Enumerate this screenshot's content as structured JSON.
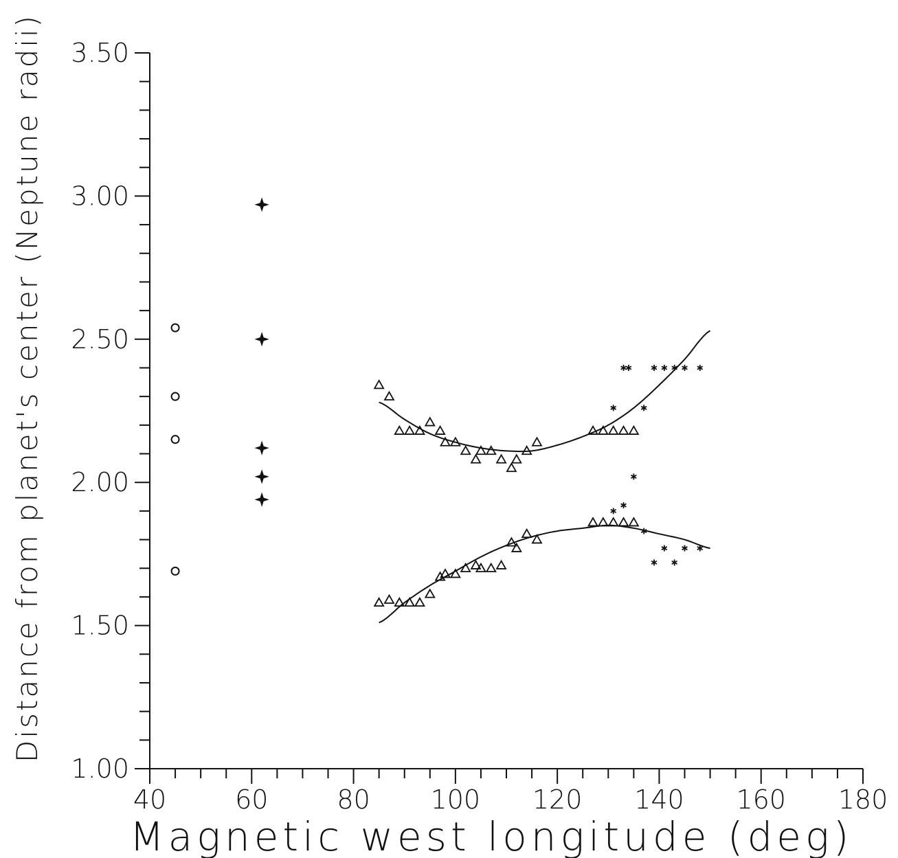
{
  "chart_data": {
    "type": "scatter",
    "title": "",
    "xlabel": "Magnetic west longitude (deg)",
    "ylabel": "Distance from planet's center (Neptune radii)",
    "xlim": [
      40,
      180
    ],
    "ylim": [
      1.0,
      3.5
    ],
    "x_ticks": [
      "40",
      "60",
      "80",
      "100",
      "120",
      "140",
      "160",
      "180"
    ],
    "y_ticks": [
      "1.00",
      "1.50",
      "2.00",
      "2.50",
      "3.00",
      "3.50"
    ],
    "grid": false,
    "series": [
      {
        "marker": "circle",
        "points": [
          [
            45,
            2.54
          ],
          [
            45,
            2.3
          ],
          [
            45,
            2.15
          ],
          [
            45,
            1.69
          ]
        ]
      },
      {
        "marker": "star",
        "points": [
          [
            62,
            2.97
          ],
          [
            62,
            2.5
          ],
          [
            62,
            2.12
          ],
          [
            62,
            2.02
          ],
          [
            62,
            1.94
          ]
        ]
      },
      {
        "marker": "triangle",
        "points": [
          [
            85,
            2.34
          ],
          [
            87,
            2.3
          ],
          [
            89,
            2.18
          ],
          [
            91,
            2.18
          ],
          [
            93,
            2.18
          ],
          [
            95,
            2.21
          ],
          [
            97,
            2.18
          ],
          [
            98,
            2.14
          ],
          [
            100,
            2.14
          ],
          [
            102,
            2.11
          ],
          [
            104,
            2.08
          ],
          [
            105,
            2.11
          ],
          [
            107,
            2.11
          ],
          [
            109,
            2.08
          ],
          [
            111,
            2.05
          ],
          [
            112,
            2.08
          ],
          [
            114,
            2.11
          ],
          [
            116,
            2.14
          ],
          [
            127,
            2.18
          ],
          [
            129,
            2.18
          ],
          [
            131,
            2.18
          ],
          [
            133,
            2.18
          ],
          [
            135,
            2.18
          ],
          [
            85,
            1.58
          ],
          [
            87,
            1.59
          ],
          [
            89,
            1.58
          ],
          [
            91,
            1.58
          ],
          [
            93,
            1.58
          ],
          [
            95,
            1.61
          ],
          [
            97,
            1.67
          ],
          [
            98,
            1.68
          ],
          [
            100,
            1.68
          ],
          [
            102,
            1.7
          ],
          [
            104,
            1.71
          ],
          [
            105,
            1.7
          ],
          [
            107,
            1.7
          ],
          [
            109,
            1.71
          ],
          [
            111,
            1.79
          ],
          [
            112,
            1.77
          ],
          [
            114,
            1.82
          ],
          [
            116,
            1.8
          ],
          [
            127,
            1.86
          ],
          [
            129,
            1.86
          ],
          [
            131,
            1.86
          ],
          [
            133,
            1.86
          ],
          [
            135,
            1.86
          ]
        ]
      },
      {
        "marker": "asterisk",
        "points": [
          [
            131,
            2.26
          ],
          [
            133,
            2.4
          ],
          [
            134,
            2.4
          ],
          [
            137,
            2.26
          ],
          [
            135,
            2.02
          ],
          [
            139,
            2.4
          ],
          [
            141,
            2.4
          ],
          [
            143,
            2.4
          ],
          [
            145,
            2.4
          ],
          [
            148,
            2.4
          ],
          [
            131,
            1.9
          ],
          [
            133,
            1.92
          ],
          [
            137,
            1.83
          ],
          [
            139,
            1.72
          ],
          [
            141,
            1.77
          ],
          [
            143,
            1.72
          ],
          [
            145,
            1.77
          ],
          [
            148,
            1.77
          ]
        ]
      }
    ],
    "fit_curves": [
      {
        "x": [
          85,
          90,
          95,
          100,
          105,
          110,
          115,
          120,
          125,
          130,
          135,
          140,
          145,
          150
        ],
        "values": [
          2.28,
          2.22,
          2.17,
          2.14,
          2.12,
          2.11,
          2.11,
          2.13,
          2.16,
          2.2,
          2.26,
          2.34,
          2.43,
          2.53
        ]
      },
      {
        "x": [
          85,
          90,
          95,
          100,
          105,
          110,
          115,
          120,
          125,
          130,
          135,
          140,
          145,
          150
        ],
        "values": [
          1.51,
          1.58,
          1.64,
          1.69,
          1.74,
          1.78,
          1.81,
          1.83,
          1.84,
          1.85,
          1.84,
          1.82,
          1.8,
          1.77
        ]
      }
    ]
  }
}
